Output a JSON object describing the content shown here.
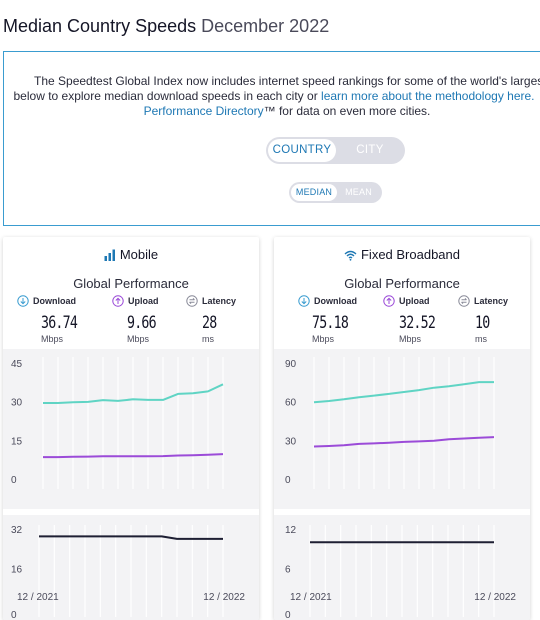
{
  "page": {
    "title": "Median Country Speeds",
    "subtitle": "December 2022"
  },
  "info": {
    "line1": "The Speedtest Global Index now includes internet speed rankings for some of the world's largest cit",
    "line2_pre": "below to explore median download speeds in each city or ",
    "line2_link": "learn more about the methodology here.",
    "line3_link": "Performance Directory",
    "line3_post": "™ for data on even more cities."
  },
  "toggles": {
    "scope": {
      "options": [
        "COUNTRY",
        "CITY"
      ],
      "selected": "COUNTRY"
    },
    "stat": {
      "options": [
        "MEDIAN",
        "MEAN"
      ],
      "selected": "MEDIAN"
    }
  },
  "colors": {
    "download": "#5fd4c4",
    "upload": "#9b4bd8",
    "latency": "#1e1f33",
    "link": "#1e78b4",
    "accent_blue": "#3a9cd0"
  },
  "panels": [
    {
      "title": "Mobile",
      "icon": "signal-bars-icon",
      "section_title": "Global Performance",
      "metrics": {
        "download": {
          "label": "Download",
          "value": "36.74",
          "unit": "Mbps"
        },
        "upload": {
          "label": "Upload",
          "value": "9.66",
          "unit": "Mbps"
        },
        "latency": {
          "label": "Latency",
          "value": "28",
          "unit": "ms"
        }
      },
      "dates": {
        "start": "12 / 2021",
        "end": "12 / 2022"
      }
    },
    {
      "title": "Fixed Broadband",
      "icon": "wifi-icon",
      "section_title": "Global Performance",
      "metrics": {
        "download": {
          "label": "Download",
          "value": "75.18",
          "unit": "Mbps"
        },
        "upload": {
          "label": "Upload",
          "value": "32.52",
          "unit": "Mbps"
        },
        "latency": {
          "label": "Latency",
          "value": "10",
          "unit": "ms"
        }
      },
      "dates": {
        "start": "12 / 2021",
        "end": "12 / 2022"
      }
    }
  ],
  "chart_data": [
    {
      "type": "line",
      "x": [
        "12/2021",
        "1/2022",
        "2/2022",
        "3/2022",
        "4/2022",
        "5/2022",
        "6/2022",
        "7/2022",
        "8/2022",
        "9/2022",
        "10/2022",
        "11/2022",
        "12/2022"
      ],
      "ylim": [
        0,
        45
      ],
      "yticks": [
        0,
        15,
        30,
        45
      ],
      "series": [
        {
          "name": "Download",
          "values": [
            29.5,
            29.5,
            29.8,
            29.9,
            30.6,
            30.3,
            30.9,
            30.7,
            30.7,
            33.0,
            33.3,
            34.0,
            36.74
          ]
        },
        {
          "name": "Upload",
          "values": [
            8.5,
            8.5,
            8.6,
            8.7,
            8.8,
            8.8,
            8.8,
            8.8,
            8.9,
            9.1,
            9.2,
            9.4,
            9.66
          ]
        }
      ]
    },
    {
      "type": "line",
      "x": [
        "12/2021",
        "1/2022",
        "2/2022",
        "3/2022",
        "4/2022",
        "5/2022",
        "6/2022",
        "7/2022",
        "8/2022",
        "9/2022",
        "10/2022",
        "11/2022",
        "12/2022"
      ],
      "ylim": [
        0,
        32
      ],
      "yticks": [
        0,
        16,
        32
      ],
      "series": [
        {
          "name": "Latency",
          "values": [
            29,
            29,
            29,
            29,
            29,
            29,
            29,
            29,
            29,
            28,
            28,
            28,
            28
          ]
        }
      ]
    },
    {
      "type": "line",
      "x": [
        "12/2021",
        "1/2022",
        "2/2022",
        "3/2022",
        "4/2022",
        "5/2022",
        "6/2022",
        "7/2022",
        "8/2022",
        "9/2022",
        "10/2022",
        "11/2022",
        "12/2022"
      ],
      "ylim": [
        0,
        90
      ],
      "yticks": [
        0,
        30,
        60,
        90
      ],
      "series": [
        {
          "name": "Download",
          "values": [
            59.5,
            60.5,
            61.8,
            63.5,
            64.7,
            66.0,
            67.5,
            69.0,
            70.8,
            72.0,
            73.5,
            75.2,
            75.18
          ]
        },
        {
          "name": "Upload",
          "values": [
            25.2,
            25.6,
            26.2,
            27.2,
            27.6,
            28.2,
            28.8,
            29.2,
            29.7,
            30.8,
            31.4,
            32.0,
            32.52
          ]
        }
      ]
    },
    {
      "type": "line",
      "x": [
        "12/2021",
        "1/2022",
        "2/2022",
        "3/2022",
        "4/2022",
        "5/2022",
        "6/2022",
        "7/2022",
        "8/2022",
        "9/2022",
        "10/2022",
        "11/2022",
        "12/2022"
      ],
      "ylim": [
        0,
        12
      ],
      "yticks": [
        0,
        6,
        12
      ],
      "series": [
        {
          "name": "Latency",
          "values": [
            10,
            10,
            10,
            10,
            10,
            10,
            10,
            10,
            10,
            10,
            10,
            10,
            10
          ]
        }
      ]
    }
  ]
}
